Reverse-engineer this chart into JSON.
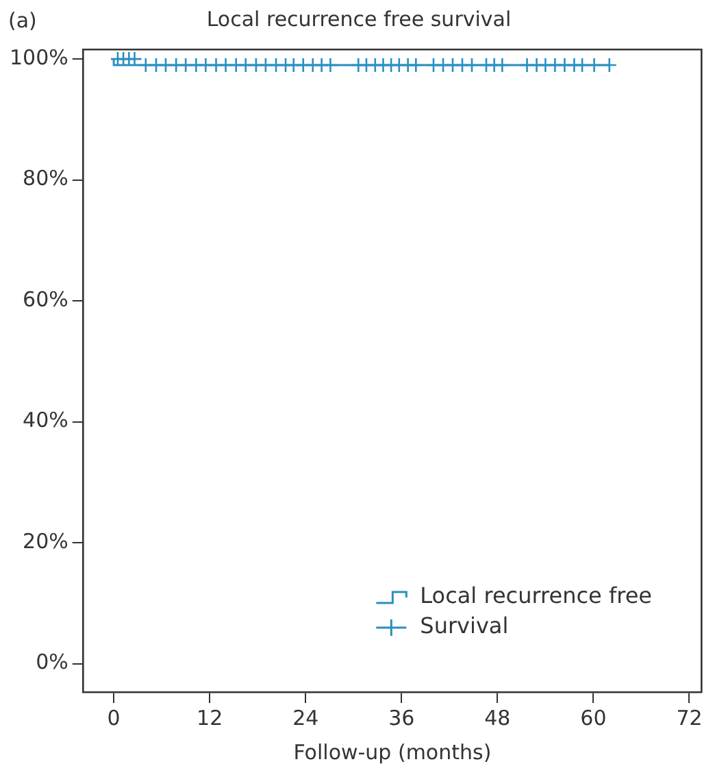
{
  "chart_data": {
    "type": "step",
    "title": "Local recurrence free survival",
    "xlabel": "Follow-up (months)",
    "annotations": [
      "(a)"
    ],
    "series": [
      {
        "name": "Local recurrence free",
        "type": "step",
        "color": "#2a8fc0",
        "x": [
          0,
          4.1,
          62
        ],
        "values": [
          100,
          99,
          99
        ],
        "marker": "none"
      },
      {
        "name": "Survival",
        "type": "scatter",
        "color": "#2a8fc0",
        "marker": "cross",
        "x": [
          0.5,
          1.2,
          1.9,
          2.6,
          4.0,
          5.3,
          6.5,
          7.8,
          9.0,
          10.3,
          11.5,
          12.8,
          14.0,
          15.3,
          16.5,
          17.8,
          19.0,
          20.3,
          21.5,
          22.5,
          23.7,
          24.9,
          26.0,
          27.1,
          30.6,
          31.6,
          32.7,
          33.7,
          34.7,
          35.7,
          36.8,
          37.8,
          40.0,
          41.2,
          42.4,
          43.6,
          44.8,
          46.6,
          47.6,
          48.6,
          51.7,
          52.9,
          54.0,
          55.2,
          56.4,
          57.6,
          58.6,
          60.1,
          62
        ],
        "values": [
          100,
          100,
          100,
          100,
          99,
          99,
          99,
          99,
          99,
          99,
          99,
          99,
          99,
          99,
          99,
          99,
          99,
          99,
          99,
          99,
          99,
          99,
          99,
          99,
          99,
          99,
          99,
          99,
          99,
          99,
          99,
          99,
          99,
          99,
          99,
          99,
          99,
          99,
          99,
          99,
          99,
          99,
          99,
          99,
          99,
          99,
          99,
          99,
          99
        ]
      }
    ],
    "xlim": [
      -3.8,
      73.5
    ],
    "xticks": [
      0,
      12,
      24,
      36,
      48,
      60,
      72
    ],
    "ylim": [
      -4.7,
      101.6
    ],
    "yticks": [
      {
        "value": 0,
        "label": "0%"
      },
      {
        "value": 20,
        "label": "20%"
      },
      {
        "value": 40,
        "label": "40%"
      },
      {
        "value": 60,
        "label": "60%"
      },
      {
        "value": 80,
        "label": "80%"
      },
      {
        "value": 100,
        "label": "100%"
      }
    ],
    "grid": false,
    "legend": "bottom right"
  }
}
